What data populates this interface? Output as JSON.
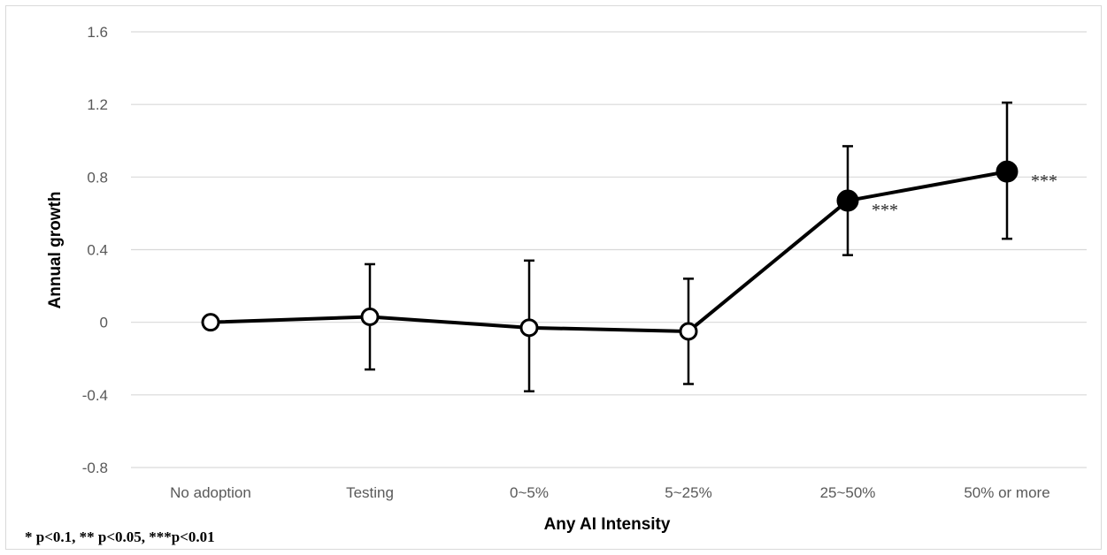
{
  "chart_data": {
    "type": "line",
    "title": "",
    "xlabel": "Any AI Intensity",
    "ylabel": "Annual growth",
    "categories": [
      "No adoption",
      "Testing",
      "0~5%",
      "5~25%",
      "25~50%",
      "50% or more"
    ],
    "series": [
      {
        "values": [
          0,
          0.03,
          -0.03,
          -0.05,
          0.67,
          0.83
        ],
        "ci_upper": [
          null,
          0.32,
          0.34,
          0.24,
          0.97,
          1.21
        ],
        "ci_lower": [
          null,
          -0.26,
          -0.38,
          -0.34,
          0.37,
          0.46
        ],
        "significant": [
          false,
          false,
          false,
          false,
          true,
          true
        ],
        "significance_labels": [
          "",
          "",
          "",
          "",
          "***",
          "***"
        ]
      }
    ],
    "yticks": [
      1.6,
      1.2,
      0.8,
      0.4,
      0,
      -0.4,
      -0.8
    ],
    "ytick_labels": [
      "1.6",
      "1.2",
      "0.8",
      "0.4",
      "0",
      "-0.4",
      "-0.8"
    ],
    "ylim": [
      -0.8,
      1.6
    ],
    "grid": true,
    "legend": "none",
    "colors": {
      "line": "#000000",
      "grid": "#d9d9d9",
      "open_marker_fill": "#ffffff",
      "filled_marker": "#000000"
    }
  },
  "footnote": "* p<0.1, ** p<0.05, ***p<0.01"
}
